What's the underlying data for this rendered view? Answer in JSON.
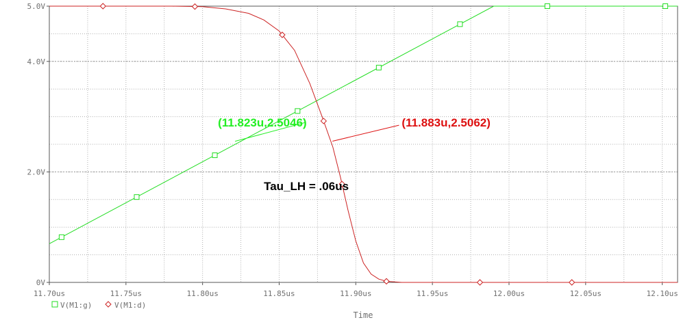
{
  "chart_data": {
    "type": "line",
    "xlabel": "Time",
    "ylabel": "",
    "xlim": [
      11.7,
      12.11
    ],
    "ylim": [
      0,
      5.0
    ],
    "x_ticks": [
      11.7,
      11.75,
      11.8,
      11.85,
      11.9,
      11.95,
      12.0,
      12.05,
      12.1
    ],
    "x_tick_labels": [
      "11.70us",
      "11.75us",
      "11.80us",
      "11.85us",
      "11.90us",
      "11.95us",
      "12.00us",
      "12.05us",
      "12.10us"
    ],
    "y_ticks": [
      0,
      2.0,
      4.0,
      5.0
    ],
    "y_tick_labels": [
      "0V",
      "2.0V",
      "4.0V",
      "5.0V"
    ],
    "x_minor_step": 0.025,
    "y_minor_step": 0.5,
    "grid": true,
    "series": [
      {
        "name": "V(M1:g)",
        "color": "#22dd22",
        "marker": "square",
        "x": [
          11.7,
          11.99,
          12.11
        ],
        "y": [
          0.7,
          5.0,
          5.0
        ],
        "marker_x": [
          11.708,
          11.757,
          11.808,
          11.862,
          11.915,
          11.968,
          12.025,
          12.102
        ]
      },
      {
        "name": "V(M1:d)",
        "color": "#cc2222",
        "marker": "diamond",
        "x": [
          11.7,
          11.78,
          11.8,
          11.815,
          11.83,
          11.84,
          11.85,
          11.86,
          11.87,
          11.878,
          11.885,
          11.89,
          11.895,
          11.9,
          11.905,
          11.91,
          11.915,
          11.92,
          11.93,
          12.11
        ],
        "y": [
          5.0,
          5.0,
          4.99,
          4.95,
          4.87,
          4.75,
          4.55,
          4.2,
          3.6,
          3.0,
          2.45,
          1.9,
          1.3,
          0.75,
          0.35,
          0.15,
          0.06,
          0.02,
          0.0,
          0.0
        ],
        "marker_x": [
          11.735,
          11.795,
          11.852,
          11.879,
          11.891,
          11.92,
          11.981,
          12.041
        ]
      }
    ],
    "annotations": [
      {
        "text": "(11.823u,2.5046)",
        "color": "#22ee22",
        "point": [
          11.823,
          2.5046
        ],
        "label_at": [
          11.8,
          2.82
        ]
      },
      {
        "text": "(11.883u,2.5062)",
        "color": "#dd1111",
        "point": [
          11.883,
          2.5062
        ],
        "label_at": [
          11.93,
          2.82
        ]
      },
      {
        "text": "Tau_LH = .06us",
        "color": "#000000",
        "label_at": [
          11.84,
          1.67
        ]
      }
    ]
  }
}
